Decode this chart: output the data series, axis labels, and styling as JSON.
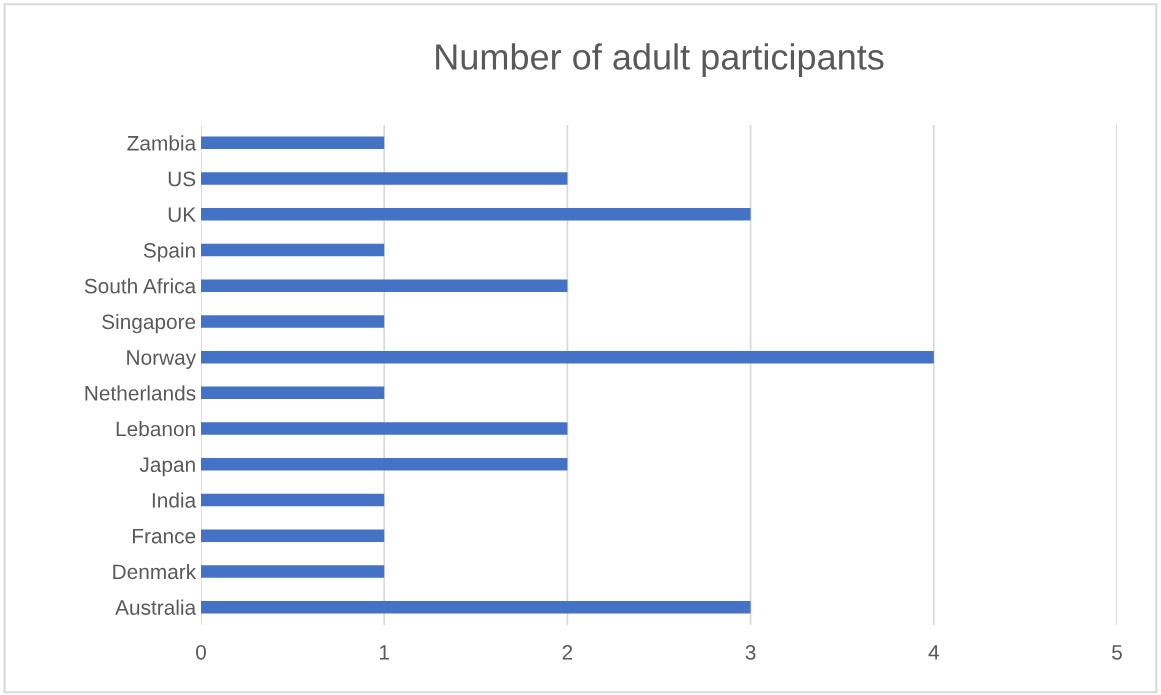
{
  "chart_data": {
    "type": "bar",
    "title": "Number of adult participants",
    "orientation": "horizontal",
    "categories": [
      "Zambia",
      "US",
      "UK",
      "Spain",
      "South Africa",
      "Singapore",
      "Norway",
      "Netherlands",
      "Lebanon",
      "Japan",
      "India",
      "France",
      "Denmark",
      "Australia"
    ],
    "values": [
      1,
      2,
      3,
      1,
      2,
      1,
      4,
      1,
      2,
      2,
      1,
      1,
      1,
      3
    ],
    "color": "#4472c4",
    "xlim": [
      0,
      5
    ],
    "xticks": [
      0,
      1,
      2,
      3,
      4,
      5
    ],
    "grid": "x",
    "legend": false
  }
}
